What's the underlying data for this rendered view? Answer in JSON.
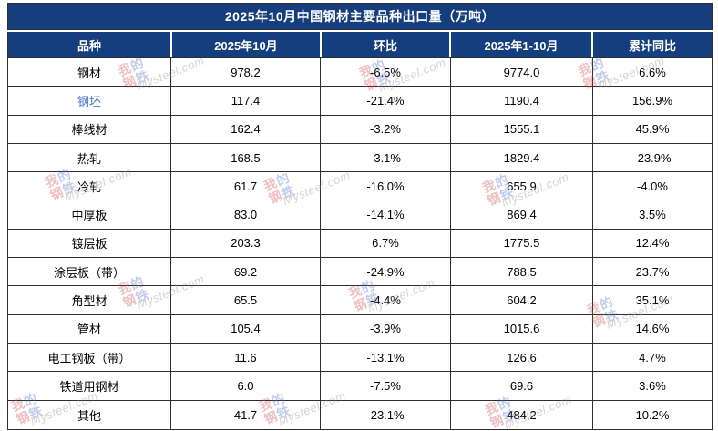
{
  "chart_data": {
    "type": "table",
    "title": "2025年10月中国钢材主要品种出口量（万吨）",
    "columns": [
      "品种",
      "2025年10月",
      "环比",
      "2025年1-10月",
      "累计同比"
    ],
    "categories": [
      "钢材",
      "钢坯",
      "棒线材",
      "热轧",
      "冷轧",
      "中厚板",
      "镀层板",
      "涂层板（带）",
      "角型材",
      "管材",
      "电工钢板（带）",
      "铁道用钢材",
      "其他"
    ],
    "series": [
      {
        "name": "2025年10月",
        "format": "number1",
        "values": [
          978.2,
          117.4,
          162.4,
          168.5,
          61.7,
          83.0,
          203.3,
          69.2,
          65.5,
          105.4,
          11.6,
          6.0,
          41.7
        ]
      },
      {
        "name": "环比",
        "format": "text",
        "values": [
          "-6.5%",
          "-21.4%",
          "-3.2%",
          "-3.1%",
          "-16.0%",
          "-14.1%",
          "6.7%",
          "-24.9%",
          "-4.4%",
          "-3.9%",
          "-13.1%",
          "-7.5%",
          "-23.1%"
        ]
      },
      {
        "name": "2025年1-10月",
        "format": "number1",
        "values": [
          9774.0,
          1190.4,
          1555.1,
          1829.4,
          655.9,
          869.4,
          1775.5,
          788.5,
          604.2,
          1015.6,
          126.6,
          69.6,
          484.2
        ]
      },
      {
        "name": "累计同比",
        "format": "text",
        "values": [
          "6.6%",
          "156.9%",
          "45.9%",
          "-23.9%",
          "-4.0%",
          "3.5%",
          "12.4%",
          "23.7%",
          "35.1%",
          "14.6%",
          "4.7%",
          "3.6%",
          "10.2%"
        ]
      }
    ],
    "layout_hints": {
      "highlighted_row_style": "blue link text",
      "all_cells": "center aligned"
    }
  },
  "highlighted_variety": "钢坯",
  "watermark": {
    "logo_chars": [
      "我",
      "的",
      "钢",
      "铁"
    ],
    "script": "Mysteel.com"
  },
  "colors": {
    "header_bg": "#153E7E",
    "link_blue": "#4472C4",
    "border": "#2e2e2e",
    "header_text": "#ffffff",
    "body_text": "#000000",
    "watermark_red": "#cd4646",
    "watermark_blue": "#4b69c3"
  }
}
